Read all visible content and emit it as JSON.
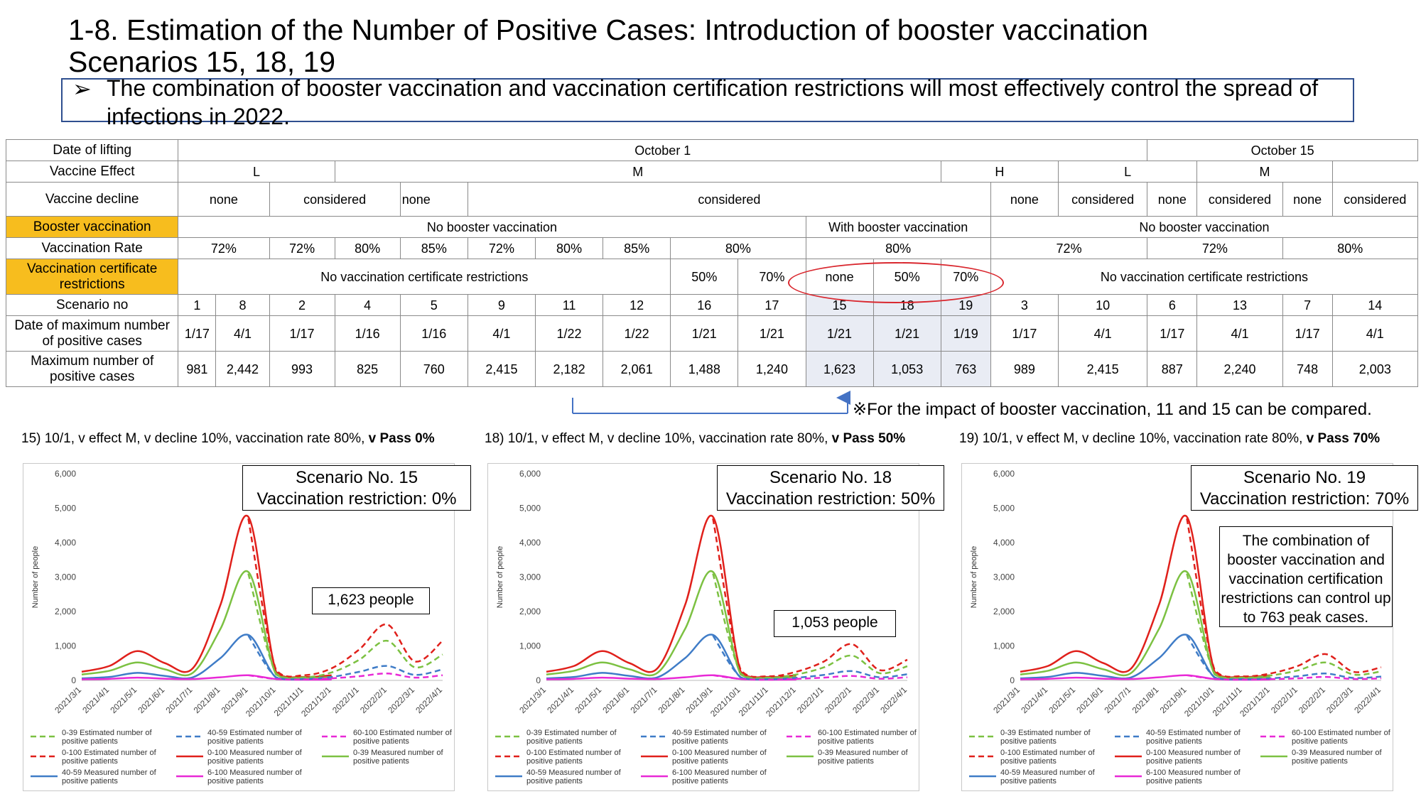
{
  "title": {
    "line1": "1-8. Estimation of the Number of Positive Cases: Introduction of booster vaccination",
    "line2": "Scenarios 15, 18, 19"
  },
  "bullet": {
    "mark": "➢",
    "text": "The combination of booster vaccination and vaccination certification restrictions will most effectively control the spread of infections in 2022."
  },
  "table": {
    "labels": {
      "date_of_lifting": "Date of lifting",
      "vaccine_effect": "Vaccine Effect",
      "vaccine_decline": "Vaccine decline",
      "booster": "Booster vaccination",
      "vaccination_rate": "Vaccination Rate",
      "certificate": "Vaccination certificate restrictions",
      "scenario_no": "Scenario no",
      "date_max": "Date of maximum number of positive cases",
      "max_cases": "Maximum number of positive cases"
    },
    "lifting": {
      "oct1": "October 1",
      "oct15": "October 15"
    },
    "effect": {
      "L": "L",
      "M": "M",
      "H": "H"
    },
    "decline": {
      "none": "none",
      "considered": "considered"
    },
    "booster": {
      "no": "No booster vaccination",
      "with": "With booster vaccination"
    },
    "rates": {
      "r72": "72%",
      "r80": "80%",
      "r85": "85%"
    },
    "cert": {
      "no": "No vaccination certificate restrictions",
      "p50": "50%",
      "p70": "70%",
      "none": "none"
    },
    "scenario_no": [
      "1",
      "8",
      "2",
      "4",
      "5",
      "9",
      "11",
      "12",
      "16",
      "17",
      "15",
      "18",
      "19",
      "3",
      "10",
      "6",
      "13",
      "7",
      "14"
    ],
    "date_max": [
      "1/17",
      "4/1",
      "1/17",
      "1/16",
      "1/16",
      "4/1",
      "1/22",
      "1/22",
      "1/21",
      "1/21",
      "1/21",
      "1/21",
      "1/19",
      "1/17",
      "4/1",
      "1/17",
      "4/1",
      "1/17",
      "4/1"
    ],
    "max_cases": [
      "981",
      "2,442",
      "993",
      "825",
      "760",
      "2,415",
      "2,182",
      "2,061",
      "1,488",
      "1,240",
      "1,623",
      "1,053",
      "763",
      "989",
      "2,415",
      "887",
      "2,240",
      "748",
      "2,003"
    ]
  },
  "note": "※For the impact of booster vaccination, 11 and 15 can be compared.",
  "panels": [
    {
      "caption_prefix": "15) 10/1, v effect M, v decline 10%, vaccination rate 80%, ",
      "caption_bold": "v Pass 0%",
      "callout": [
        "Scenario No. 15",
        "Vaccination restriction: 0%"
      ],
      "peak_label": "1,623 people"
    },
    {
      "caption_prefix": "18) 10/1, v effect M, v decline 10%, vaccination rate 80%, ",
      "caption_bold": "v Pass 50%",
      "callout": [
        "Scenario No. 18",
        "Vaccination restriction: 50%"
      ],
      "peak_label": "1,053 people"
    },
    {
      "caption_prefix": "19) 10/1, v effect M, v decline 10%, vaccination rate 80%, ",
      "caption_bold": "v Pass 70%",
      "callout": [
        "Scenario No. 19",
        "Vaccination restriction: 70%"
      ],
      "peak_label": "The combination of booster vaccination and vaccination certification restrictions can control up to 763 peak cases."
    }
  ],
  "chart_data": [
    {
      "type": "line",
      "ylabel": "Number of people",
      "ylim": [
        0,
        6000
      ],
      "yticks": [
        "0",
        "1,000",
        "2,000",
        "3,000",
        "4,000",
        "5,000",
        "6,000"
      ],
      "x": [
        "2021/3/1",
        "2021/4/1",
        "2021/5/1",
        "2021/6/1",
        "2021/7/1",
        "2021/8/1",
        "2021/9/1",
        "2021/10/1",
        "2021/11/1",
        "2021/12/1",
        "2022/1/1",
        "2022/2/1",
        "2022/3/1",
        "2022/4/1"
      ],
      "series": [
        {
          "name": "0-100 Measured number of positive patients",
          "color": "#e0201b",
          "dash": false,
          "values": [
            250,
            420,
            850,
            500,
            350,
            2200,
            4750,
            250,
            100,
            150,
            null,
            null,
            null,
            null
          ]
        },
        {
          "name": "0-39 Measured number of positive patients",
          "color": "#7cc142",
          "dash": false,
          "values": [
            170,
            280,
            520,
            320,
            220,
            1500,
            3150,
            170,
            70,
            100,
            null,
            null,
            null,
            null
          ]
        },
        {
          "name": "40-59 Measured number of positive patients",
          "color": "#3f7cc7",
          "dash": false,
          "values": [
            60,
            100,
            220,
            130,
            90,
            650,
            1320,
            80,
            25,
            40,
            null,
            null,
            null,
            null
          ]
        },
        {
          "name": "6-100 Measured number of positive patients",
          "color": "#e829d6",
          "dash": false,
          "values": [
            30,
            45,
            80,
            50,
            40,
            90,
            150,
            40,
            20,
            25,
            null,
            null,
            null,
            null
          ]
        },
        {
          "name": "0-100 Estimated number of positive patients",
          "color": "#e0201b",
          "dash": true,
          "values": [
            null,
            null,
            null,
            null,
            null,
            null,
            4700,
            300,
            150,
            350,
            900,
            1623,
            550,
            1150
          ]
        },
        {
          "name": "0-39 Estimated number of positive patients",
          "color": "#7cc142",
          "dash": true,
          "values": [
            null,
            null,
            null,
            null,
            null,
            null,
            3100,
            200,
            90,
            230,
            600,
            1150,
            380,
            750
          ]
        },
        {
          "name": "40-59 Estimated number of positive patients",
          "color": "#3f7cc7",
          "dash": true,
          "values": [
            null,
            null,
            null,
            null,
            null,
            null,
            1300,
            90,
            40,
            100,
            250,
            420,
            160,
            320
          ]
        },
        {
          "name": "60-100 Estimated number of positive patients",
          "color": "#e829d6",
          "dash": true,
          "values": [
            null,
            null,
            null,
            null,
            null,
            null,
            150,
            40,
            25,
            60,
            120,
            200,
            80,
            150
          ]
        }
      ]
    },
    {
      "type": "line",
      "ylabel": "Number of people",
      "ylim": [
        0,
        6000
      ],
      "yticks": [
        "0",
        "1,000",
        "2,000",
        "3,000",
        "4,000",
        "5,000",
        "6,000"
      ],
      "x": [
        "2021/3/1",
        "2021/4/1",
        "2021/5/1",
        "2021/6/1",
        "2021/7/1",
        "2021/8/1",
        "2021/9/1",
        "2021/10/1",
        "2021/11/1",
        "2021/12/1",
        "2022/1/1",
        "2022/2/1",
        "2022/3/1",
        "2022/4/1"
      ],
      "series": [
        {
          "name": "0-100 Measured number of positive patients",
          "color": "#e0201b",
          "dash": false,
          "values": [
            250,
            420,
            850,
            500,
            350,
            2200,
            4750,
            250,
            100,
            150,
            null,
            null,
            null,
            null
          ]
        },
        {
          "name": "0-39 Measured number of positive patients",
          "color": "#7cc142",
          "dash": false,
          "values": [
            170,
            280,
            520,
            320,
            220,
            1500,
            3150,
            170,
            70,
            100,
            null,
            null,
            null,
            null
          ]
        },
        {
          "name": "40-59 Measured number of positive patients",
          "color": "#3f7cc7",
          "dash": false,
          "values": [
            60,
            100,
            220,
            130,
            90,
            650,
            1320,
            80,
            25,
            40,
            null,
            null,
            null,
            null
          ]
        },
        {
          "name": "6-100 Measured number of positive patients",
          "color": "#e829d6",
          "dash": false,
          "values": [
            30,
            45,
            80,
            50,
            40,
            90,
            150,
            40,
            20,
            25,
            null,
            null,
            null,
            null
          ]
        },
        {
          "name": "0-100 Estimated number of positive patients",
          "color": "#e0201b",
          "dash": true,
          "values": [
            null,
            null,
            null,
            null,
            null,
            null,
            4700,
            300,
            120,
            250,
            550,
            1053,
            300,
            600
          ]
        },
        {
          "name": "0-39 Estimated number of positive patients",
          "color": "#7cc142",
          "dash": true,
          "values": [
            null,
            null,
            null,
            null,
            null,
            null,
            3100,
            200,
            80,
            170,
            380,
            720,
            210,
            410
          ]
        },
        {
          "name": "40-59 Estimated number of positive patients",
          "color": "#3f7cc7",
          "dash": true,
          "values": [
            null,
            null,
            null,
            null,
            null,
            null,
            1300,
            90,
            35,
            75,
            160,
            270,
            90,
            180
          ]
        },
        {
          "name": "60-100 Estimated number of positive patients",
          "color": "#e829d6",
          "dash": true,
          "values": [
            null,
            null,
            null,
            null,
            null,
            null,
            150,
            40,
            20,
            45,
            80,
            130,
            50,
            90
          ]
        }
      ]
    },
    {
      "type": "line",
      "ylabel": "Number of people",
      "ylim": [
        0,
        6000
      ],
      "yticks": [
        "0",
        "1,000",
        "2,000",
        "3,000",
        "4,000",
        "5,000",
        "6,000"
      ],
      "x": [
        "2021/3/1",
        "2021/4/1",
        "2021/5/1",
        "2021/6/1",
        "2021/7/1",
        "2021/8/1",
        "2021/9/1",
        "2021/10/1",
        "2021/11/1",
        "2021/12/1",
        "2022/1/1",
        "2022/2/1",
        "2022/3/1",
        "2022/4/1"
      ],
      "series": [
        {
          "name": "0-100 Measured number of positive patients",
          "color": "#e0201b",
          "dash": false,
          "values": [
            250,
            420,
            850,
            500,
            350,
            2200,
            4750,
            250,
            100,
            150,
            null,
            null,
            null,
            null
          ]
        },
        {
          "name": "0-39 Measured number of positive patients",
          "color": "#7cc142",
          "dash": false,
          "values": [
            170,
            280,
            520,
            320,
            220,
            1500,
            3150,
            170,
            70,
            100,
            null,
            null,
            null,
            null
          ]
        },
        {
          "name": "40-59 Measured number of positive patients",
          "color": "#3f7cc7",
          "dash": false,
          "values": [
            60,
            100,
            220,
            130,
            90,
            650,
            1320,
            80,
            25,
            40,
            null,
            null,
            null,
            null
          ]
        },
        {
          "name": "6-100 Measured number of positive patients",
          "color": "#e829d6",
          "dash": false,
          "values": [
            30,
            45,
            80,
            50,
            40,
            90,
            150,
            40,
            20,
            25,
            null,
            null,
            null,
            null
          ]
        },
        {
          "name": "0-100 Estimated number of positive patients",
          "color": "#e0201b",
          "dash": true,
          "values": [
            null,
            null,
            null,
            null,
            null,
            null,
            4700,
            300,
            120,
            200,
            420,
            763,
            250,
            380
          ]
        },
        {
          "name": "0-39 Estimated number of positive patients",
          "color": "#7cc142",
          "dash": true,
          "values": [
            null,
            null,
            null,
            null,
            null,
            null,
            3100,
            200,
            80,
            140,
            290,
            520,
            170,
            260
          ]
        },
        {
          "name": "40-59 Estimated number of positive patients",
          "color": "#3f7cc7",
          "dash": true,
          "values": [
            null,
            null,
            null,
            null,
            null,
            null,
            1300,
            90,
            35,
            60,
            120,
            200,
            70,
            110
          ]
        },
        {
          "name": "60-100 Estimated number of positive patients",
          "color": "#e829d6",
          "dash": true,
          "values": [
            null,
            null,
            null,
            null,
            null,
            null,
            150,
            40,
            20,
            35,
            60,
            100,
            40,
            60
          ]
        }
      ]
    }
  ]
}
